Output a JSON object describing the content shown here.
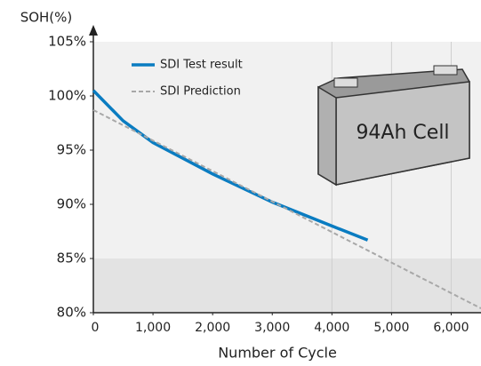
{
  "chart_data": {
    "type": "line",
    "y_label": "SOH(%)",
    "x_label": "Number of Cycle",
    "annotation": "94Ah Cell",
    "xlim": [
      0,
      6500
    ],
    "ylim": [
      80,
      105
    ],
    "xticks": [
      0,
      {
        "value": 1000,
        "label": "1,000"
      },
      {
        "value": 2000,
        "label": "2,000"
      },
      {
        "value": 3000,
        "label": "3,000"
      },
      {
        "value": 4000,
        "label": "4,000"
      },
      {
        "value": 5000,
        "label": "5,000"
      },
      {
        "value": 6000,
        "label": "6,000"
      }
    ],
    "yticks": [
      {
        "value": 80,
        "label": "80%"
      },
      {
        "value": 85,
        "label": "85%"
      },
      {
        "value": 90,
        "label": "90%"
      },
      {
        "value": 95,
        "label": "95%"
      },
      {
        "value": 100,
        "label": "100%"
      },
      {
        "value": 105,
        "label": "105%"
      }
    ],
    "x_grid": [
      4000,
      5000,
      6000
    ],
    "shaded_below": 85,
    "series": [
      {
        "name": "SDI Test result",
        "color": "#0a7cc1",
        "dash": false,
        "x": [
          0,
          500,
          1000,
          2000,
          3000,
          4000,
          4600
        ],
        "values": [
          100.5,
          97.7,
          95.7,
          92.8,
          90.2,
          88.0,
          86.7
        ]
      },
      {
        "name": "SDI Prediction",
        "color": "#a8a8a8",
        "dash": true,
        "x": [
          0,
          6500
        ],
        "values": [
          98.7,
          80.4
        ]
      }
    ]
  }
}
